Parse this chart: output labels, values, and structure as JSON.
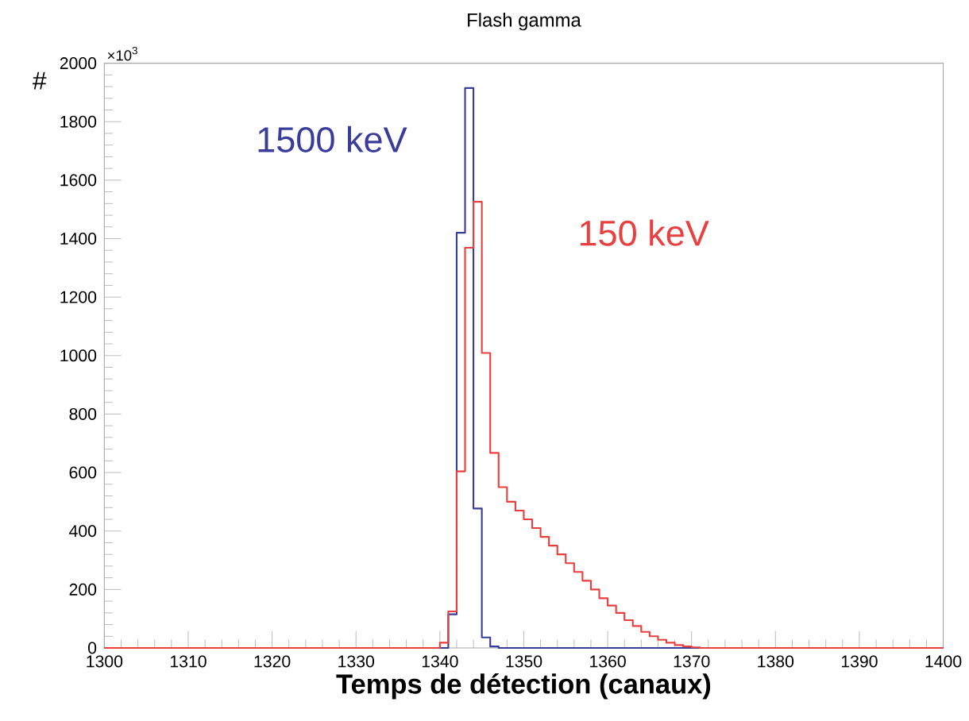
{
  "chart_data": {
    "type": "histogram",
    "title": "Flash gamma",
    "xlabel": "Temps de détection (canaux)",
    "ylabel": "#",
    "annotations": [
      "×10$^{3}$"
    ],
    "bins": [
      1300,
      1301,
      1302,
      1303,
      1304,
      1305,
      1306,
      1307,
      1308,
      1309,
      1310,
      1311,
      1312,
      1313,
      1314,
      1315,
      1316,
      1317,
      1318,
      1319,
      1320,
      1321,
      1322,
      1323,
      1324,
      1325,
      1326,
      1327,
      1328,
      1329,
      1330,
      1331,
      1332,
      1333,
      1334,
      1335,
      1336,
      1337,
      1338,
      1339,
      1340,
      1341,
      1342,
      1343,
      1344,
      1345,
      1346,
      1347,
      1348,
      1349,
      1350,
      1351,
      1352,
      1353,
      1354,
      1355,
      1356,
      1357,
      1358,
      1359,
      1360,
      1361,
      1362,
      1363,
      1364,
      1365,
      1366,
      1367,
      1368,
      1369,
      1370,
      1371,
      1372,
      1373,
      1374,
      1375,
      1376,
      1377,
      1378,
      1379,
      1380,
      1381,
      1382,
      1383,
      1384,
      1385,
      1386,
      1387,
      1388,
      1389,
      1390,
      1391,
      1392,
      1393,
      1394,
      1395,
      1396,
      1397,
      1398,
      1399,
      1400
    ],
    "series": [
      {
        "name": "1500 keV",
        "color": "#3a3c9c",
        "values": [
          0,
          0,
          0,
          0,
          0,
          0,
          0,
          0,
          0,
          0,
          0,
          0,
          0,
          0,
          0,
          0,
          0,
          0,
          0,
          0,
          0,
          0,
          0,
          0,
          0,
          0,
          0,
          0,
          0,
          0,
          0,
          0,
          0,
          0,
          0,
          0,
          0,
          0,
          0,
          0,
          0,
          115,
          1420,
          1915,
          477,
          36,
          5,
          0,
          0,
          0,
          0,
          0,
          0,
          0,
          0,
          0,
          0,
          0,
          0,
          0,
          0,
          0,
          0,
          0,
          0,
          0,
          0,
          0,
          0,
          0,
          0,
          0,
          0,
          0,
          0,
          0,
          0,
          0,
          0,
          0,
          0,
          0,
          0,
          0,
          0,
          0,
          0,
          0,
          0,
          0,
          0,
          0,
          0,
          0,
          0,
          0,
          0,
          0,
          0,
          0
        ]
      },
      {
        "name": "150 keV",
        "color": "#e8403f",
        "values": [
          0,
          0,
          0,
          0,
          0,
          0,
          0,
          0,
          0,
          0,
          0,
          0,
          0,
          0,
          0,
          0,
          0,
          0,
          0,
          0,
          0,
          0,
          0,
          0,
          0,
          0,
          0,
          0,
          0,
          0,
          0,
          0,
          0,
          0,
          0,
          0,
          0,
          0,
          0,
          0,
          18,
          125,
          604,
          1369,
          1526,
          1009,
          667,
          550,
          500,
          470,
          440,
          410,
          380,
          350,
          320,
          290,
          260,
          230,
          200,
          170,
          145,
          120,
          95,
          75,
          55,
          40,
          28,
          18,
          10,
          5,
          2,
          0,
          0,
          0,
          0,
          0,
          0,
          0,
          0,
          0,
          0,
          0,
          0,
          0,
          0,
          0,
          0,
          0,
          0,
          0,
          0,
          0,
          0,
          0,
          0,
          0,
          0,
          0,
          0,
          0
        ]
      }
    ],
    "xlim": [
      1300,
      1400
    ],
    "xticks": [
      1300,
      1310,
      1320,
      1330,
      1340,
      1350,
      1360,
      1370,
      1380,
      1390,
      1400
    ],
    "ylim": [
      0,
      2000
    ],
    "yticks": [
      0,
      200,
      400,
      600,
      800,
      1000,
      1200,
      1400,
      1600,
      1800,
      2000
    ],
    "grid": false
  }
}
